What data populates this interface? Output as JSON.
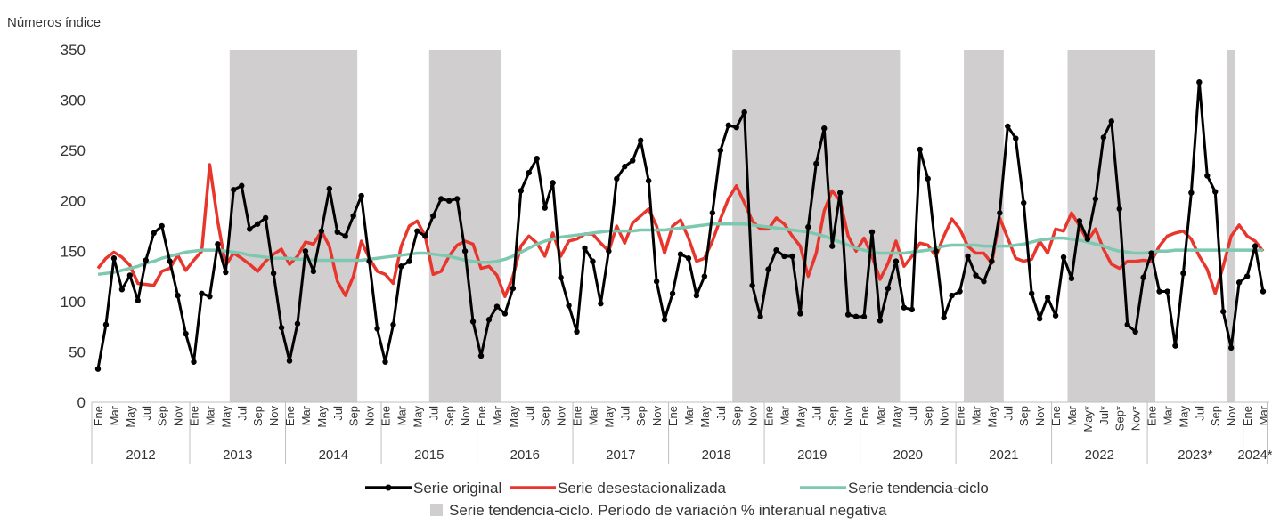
{
  "chart_data": {
    "type": "line",
    "y_axis_label": "Números índice",
    "ylim": [
      0,
      350
    ],
    "yticks": [
      0,
      50,
      100,
      150,
      200,
      250,
      300,
      350
    ],
    "categories": [
      "Ene",
      null,
      "Mar",
      null,
      "May",
      null,
      "Jul",
      null,
      "Sep",
      null,
      "Nov",
      null,
      "Ene",
      null,
      "Mar",
      null,
      "May",
      null,
      "Jul",
      null,
      "Sep",
      null,
      "Nov",
      null,
      "Ene",
      null,
      "Mar",
      null,
      "May",
      null,
      "Jul",
      null,
      "Sep",
      null,
      "Nov",
      null,
      "Ene",
      null,
      "Mar",
      null,
      "May",
      null,
      "Jul",
      null,
      "Sep",
      null,
      "Nov",
      null,
      "Ene",
      null,
      "Mar",
      null,
      "May",
      null,
      "Jul",
      null,
      "Sep",
      null,
      "Nov",
      null,
      "Ene",
      null,
      "Mar",
      null,
      "May",
      null,
      "Jul",
      null,
      "Sep",
      null,
      "Nov",
      null,
      "Ene",
      null,
      "Mar",
      null,
      "May",
      null,
      "Jul",
      null,
      "Sep",
      null,
      "Nov",
      null,
      "Ene",
      null,
      "Mar",
      null,
      "May",
      null,
      "Jul",
      null,
      "Sep",
      null,
      "Nov",
      null,
      "Ene",
      null,
      "Mar",
      null,
      "May",
      null,
      "Jul",
      null,
      "Sep",
      null,
      "Nov",
      null,
      "Ene",
      null,
      "Mar",
      null,
      "May",
      null,
      "Jul",
      null,
      "Sep",
      null,
      "Nov",
      null,
      "Ene",
      null,
      "Mar",
      null,
      "May*",
      null,
      "Jul*",
      null,
      "Sep*",
      null,
      "Nov*",
      null,
      "Ene",
      null,
      "Mar",
      null,
      "May",
      null,
      "Jul",
      null,
      "Sep",
      null,
      "Nov",
      null,
      "Ene",
      null,
      "Mar"
    ],
    "year_labels": [
      "2012",
      "2013",
      "2014",
      "2015",
      "2016",
      "2017",
      "2018",
      "2019",
      "2020",
      "2021",
      "2022",
      "2023*",
      "2024*"
    ],
    "shaded_periods": [
      {
        "start": 17,
        "end": 32
      },
      {
        "start": 42,
        "end": 50
      },
      {
        "start": 80,
        "end": 100
      },
      {
        "start": 109,
        "end": 113
      },
      {
        "start": 122,
        "end": 132
      },
      {
        "start": 142,
        "end": 142
      }
    ],
    "shaded_label": "Serie tendencia-ciclo. Período de variación % interanual negativa",
    "shaded_color": "#d0cece",
    "series": [
      {
        "name": "Serie original",
        "color": "#000000",
        "markers": true,
        "values": [
          33,
          77,
          143,
          112,
          126,
          101,
          141,
          168,
          175,
          140,
          106,
          68,
          40,
          108,
          105,
          157,
          129,
          211,
          215,
          172,
          177,
          183,
          128,
          74,
          41,
          78,
          150,
          130,
          170,
          212,
          169,
          165,
          185,
          205,
          140,
          73,
          40,
          77,
          135,
          140,
          170,
          165,
          185,
          202,
          200,
          202,
          150,
          80,
          46,
          82,
          95,
          88,
          113,
          210,
          228,
          242,
          193,
          218,
          124,
          96,
          70,
          153,
          140,
          98,
          150,
          222,
          234,
          240,
          260,
          220,
          120,
          82,
          108,
          147,
          143,
          106,
          125,
          188,
          250,
          275,
          273,
          288,
          116,
          85,
          132,
          151,
          145,
          145,
          88,
          174,
          237,
          272,
          155,
          208,
          87,
          85,
          85,
          169,
          81,
          113,
          140,
          94,
          92,
          251,
          222,
          150,
          84,
          106,
          110,
          145,
          126,
          120,
          140,
          188,
          274,
          262,
          198,
          108,
          83,
          104,
          86,
          144,
          123,
          180,
          162,
          202,
          263,
          279,
          192,
          77,
          70,
          124,
          148,
          110,
          110,
          56,
          128,
          208,
          318,
          225,
          209,
          90,
          54,
          119,
          125,
          155,
          110
        ]
      },
      {
        "name": "Serie desestacionalizada",
        "color": "#e8362d",
        "markers": false,
        "values": [
          133,
          143,
          149,
          144,
          136,
          118,
          117,
          116,
          130,
          133,
          146,
          131,
          141,
          150,
          236,
          180,
          136,
          148,
          143,
          137,
          130,
          140,
          147,
          152,
          137,
          145,
          159,
          157,
          170,
          155,
          120,
          106,
          125,
          160,
          143,
          130,
          127,
          118,
          155,
          175,
          180,
          165,
          127,
          130,
          145,
          156,
          160,
          157,
          133,
          135,
          126,
          105,
          125,
          155,
          165,
          158,
          145,
          168,
          145,
          160,
          162,
          167,
          167,
          158,
          150,
          175,
          158,
          178,
          185,
          192,
          175,
          148,
          175,
          181,
          163,
          140,
          143,
          160,
          182,
          202,
          215,
          198,
          180,
          172,
          172,
          183,
          177,
          165,
          155,
          125,
          148,
          190,
          210,
          200,
          165,
          150,
          163,
          145,
          122,
          138,
          160,
          135,
          145,
          158,
          156,
          145,
          165,
          182,
          172,
          155,
          148,
          148,
          138,
          183,
          163,
          143,
          140,
          142,
          160,
          148,
          172,
          170,
          188,
          175,
          160,
          172,
          152,
          137,
          133,
          140,
          140,
          141,
          140,
          155,
          165,
          168,
          170,
          162,
          145,
          132,
          108,
          135,
          165,
          176,
          165,
          160,
          150
        ]
      },
      {
        "name": "Serie tendencia-ciclo",
        "color": "#7dc8b0",
        "markers": false,
        "values": [
          127,
          128,
          129,
          131,
          133,
          135,
          138,
          140,
          143,
          145,
          147,
          149,
          150,
          151,
          151,
          151,
          150,
          149,
          148,
          146,
          145,
          144,
          143,
          143,
          143,
          142,
          142,
          141,
          141,
          141,
          141,
          141,
          141,
          141,
          142,
          143,
          144,
          145,
          146,
          147,
          148,
          148,
          147,
          146,
          145,
          143,
          141,
          140,
          139,
          139,
          140,
          142,
          145,
          149,
          153,
          157,
          160,
          162,
          164,
          165,
          166,
          167,
          168,
          169,
          170,
          170,
          170,
          170,
          171,
          171,
          171,
          171,
          172,
          173,
          174,
          175,
          176,
          177,
          177,
          177,
          177,
          177,
          176,
          175,
          174,
          173,
          172,
          171,
          170,
          169,
          167,
          165,
          162,
          159,
          156,
          153,
          151,
          149,
          148,
          148,
          148,
          148,
          149,
          150,
          151,
          153,
          155,
          156,
          156,
          156,
          156,
          155,
          155,
          155,
          155,
          156,
          157,
          159,
          161,
          162,
          163,
          163,
          162,
          161,
          159,
          157,
          155,
          152,
          150,
          149,
          148,
          148,
          149,
          150,
          150,
          151,
          151,
          151,
          151,
          151,
          151,
          151,
          151,
          151,
          151,
          151,
          151
        ]
      }
    ]
  }
}
